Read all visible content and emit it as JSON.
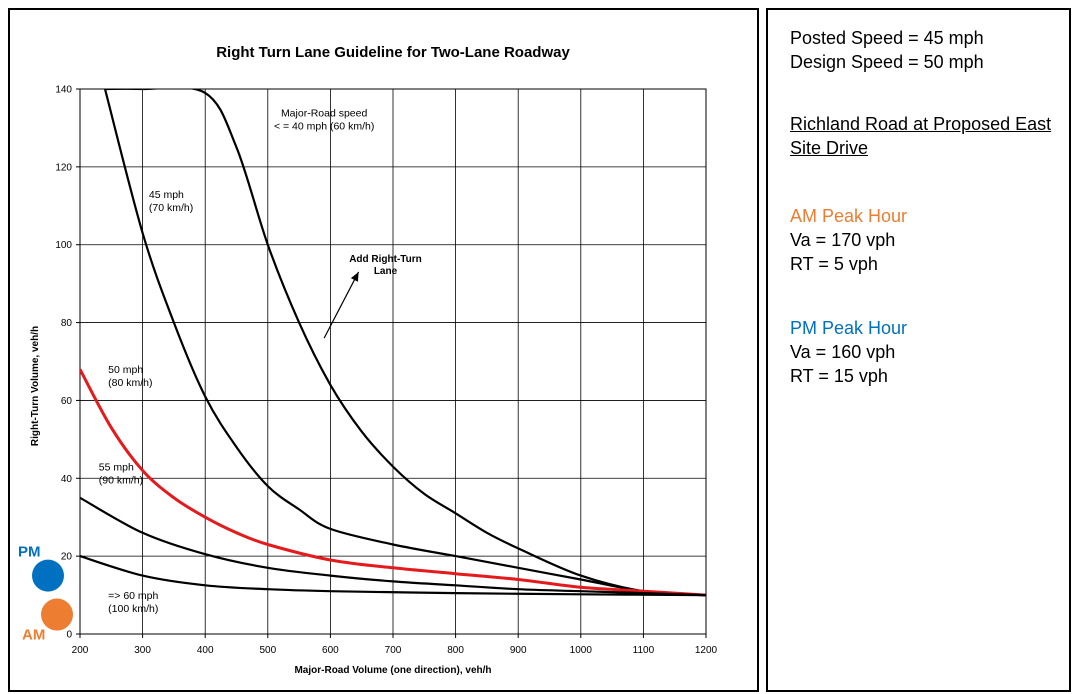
{
  "info": {
    "posted_speed": "Posted Speed = 45 mph",
    "design_speed": "Design Speed = 50 mph",
    "location_line1": "Richland Road at Proposed East",
    "location_line2": "Site Drive",
    "am_header": "AM Peak Hour",
    "am_va": "Va = 170 vph",
    "am_rt": "RT = 5 vph",
    "pm_header": "PM Peak Hour",
    "pm_va": "Va = 160 vph",
    "pm_rt": "RT = 15 vph"
  },
  "colors": {
    "am": "#ed7d31",
    "pm": "#0070c0",
    "design_curve": "#e41a1c",
    "curve": "#000000"
  },
  "chart_data": {
    "type": "line",
    "title": "Right Turn Lane Guideline for Two-Lane Roadway",
    "xlabel": "Major-Road Volume (one direction), veh/h",
    "ylabel": "Right-Turn Volume, veh/h",
    "xlim": [
      200,
      1200
    ],
    "ylim": [
      0,
      140
    ],
    "x_ticks": [
      200,
      300,
      400,
      500,
      600,
      700,
      800,
      900,
      1000,
      1100,
      1200
    ],
    "y_ticks": [
      0,
      20,
      40,
      60,
      80,
      100,
      120,
      140
    ],
    "grid": true,
    "series": [
      {
        "name": "",
        "label_lines": [
          "Major-Road speed",
          "< = 40 mph (60 km/h)"
        ],
        "color": "#000000",
        "points": [
          [
            240,
            140
          ],
          [
            300,
            140
          ],
          [
            400,
            139
          ],
          [
            450,
            125
          ],
          [
            500,
            100
          ],
          [
            550,
            80
          ],
          [
            600,
            64
          ],
          [
            650,
            52
          ],
          [
            700,
            43
          ],
          [
            750,
            36
          ],
          [
            800,
            31
          ],
          [
            850,
            26
          ],
          [
            900,
            22
          ],
          [
            1000,
            15
          ],
          [
            1100,
            11
          ],
          [
            1200,
            10
          ]
        ]
      },
      {
        "name": "",
        "label_lines": [
          "45 mph",
          "(70 km/h)"
        ],
        "color": "#000000",
        "points": [
          [
            240,
            140
          ],
          [
            300,
            103
          ],
          [
            350,
            80
          ],
          [
            400,
            61
          ],
          [
            450,
            48
          ],
          [
            500,
            38
          ],
          [
            550,
            32
          ],
          [
            600,
            27
          ],
          [
            700,
            23
          ],
          [
            800,
            20
          ],
          [
            900,
            17
          ],
          [
            1000,
            14
          ],
          [
            1100,
            11
          ],
          [
            1200,
            10
          ]
        ]
      },
      {
        "name": "",
        "label_lines": [
          "50 mph",
          "(80 km/h)"
        ],
        "color": "#e41a1c",
        "points": [
          [
            200,
            68
          ],
          [
            250,
            53
          ],
          [
            300,
            42
          ],
          [
            350,
            35
          ],
          [
            400,
            30
          ],
          [
            450,
            26
          ],
          [
            500,
            23
          ],
          [
            600,
            19
          ],
          [
            700,
            17
          ],
          [
            800,
            15.5
          ],
          [
            900,
            14
          ],
          [
            1000,
            12
          ],
          [
            1100,
            11
          ],
          [
            1200,
            10
          ]
        ]
      },
      {
        "name": "",
        "label_lines": [
          "55 mph",
          "(90 km/h)"
        ],
        "color": "#000000",
        "points": [
          [
            200,
            35
          ],
          [
            300,
            26
          ],
          [
            400,
            20.5
          ],
          [
            500,
            17
          ],
          [
            600,
            15
          ],
          [
            700,
            13.5
          ],
          [
            800,
            12.5
          ],
          [
            900,
            11.5
          ],
          [
            1000,
            11
          ],
          [
            1100,
            10.5
          ],
          [
            1200,
            10
          ]
        ]
      },
      {
        "name": "",
        "label_lines": [
          "=> 60 mph",
          "(100 km/h)"
        ],
        "color": "#000000",
        "points": [
          [
            200,
            20
          ],
          [
            300,
            15
          ],
          [
            400,
            12.5
          ],
          [
            500,
            11.5
          ],
          [
            600,
            11
          ],
          [
            800,
            10.5
          ],
          [
            1000,
            10.2
          ],
          [
            1200,
            10
          ]
        ]
      }
    ],
    "annotation": [
      "Add Right-Turn",
      "Lane"
    ],
    "annotation_arrow": {
      "from": [
        590,
        76
      ],
      "to": [
        645,
        93
      ]
    },
    "points": [
      {
        "label": "PM",
        "x": 160,
        "y": 15,
        "color": "#0070c0"
      },
      {
        "label": "AM",
        "x": 170,
        "y": 5,
        "color": "#ed7d31"
      }
    ]
  }
}
